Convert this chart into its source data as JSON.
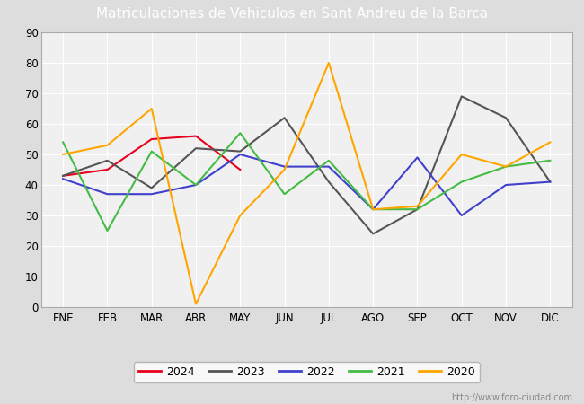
{
  "title": "Matriculaciones de Vehiculos en Sant Andreu de la Barca",
  "months": [
    "ENE",
    "FEB",
    "MAR",
    "ABR",
    "MAY",
    "JUN",
    "JUL",
    "AGO",
    "SEP",
    "OCT",
    "NOV",
    "DIC"
  ],
  "series": {
    "2024": [
      43,
      45,
      55,
      56,
      45,
      null,
      null,
      null,
      null,
      null,
      null,
      null
    ],
    "2023": [
      43,
      48,
      39,
      52,
      51,
      62,
      41,
      24,
      32,
      69,
      62,
      41
    ],
    "2022": [
      42,
      37,
      37,
      40,
      50,
      46,
      46,
      32,
      49,
      30,
      40,
      41
    ],
    "2021": [
      54,
      25,
      51,
      40,
      57,
      37,
      48,
      32,
      32,
      41,
      46,
      48
    ],
    "2020": [
      50,
      53,
      65,
      1,
      30,
      45,
      80,
      32,
      33,
      50,
      46,
      54
    ]
  },
  "colors": {
    "2024": "#e8001c",
    "2023": "#555555",
    "2022": "#4040cc",
    "2021": "#44bb44",
    "2020": "#ffa500"
  },
  "ylim": [
    0,
    90
  ],
  "yticks": [
    0,
    10,
    20,
    30,
    40,
    50,
    60,
    70,
    80,
    90
  ],
  "fig_bg_color": "#dddddd",
  "plot_bg_color": "#f0f0f0",
  "title_bg_color": "#5588dd",
  "title_text_color": "#ffffff",
  "watermark": "http://www.foro-ciudad.com"
}
